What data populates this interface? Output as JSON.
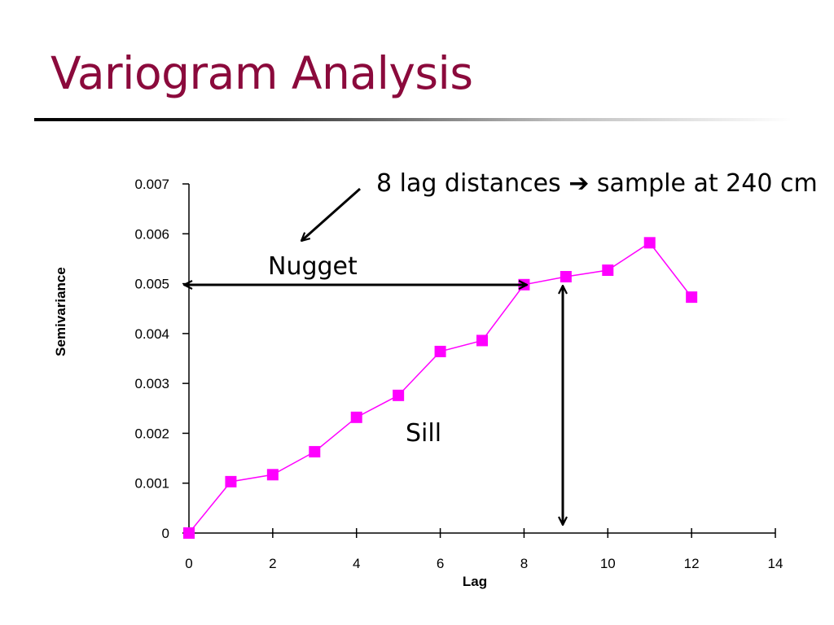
{
  "slide": {
    "title": "Variogram Analysis"
  },
  "chart_data": {
    "type": "line",
    "xlabel": "Lag",
    "ylabel": "Semivariance",
    "xlim": [
      0,
      14
    ],
    "ylim": [
      0,
      0.007
    ],
    "x_ticks": [
      "0",
      "2",
      "4",
      "6",
      "8",
      "10",
      "12",
      "14"
    ],
    "y_ticks": [
      "0",
      "0.001",
      "0.002",
      "0.003",
      "0.004",
      "0.005",
      "0.006",
      "0.007"
    ],
    "grid": false,
    "legend": "none",
    "series": [
      {
        "color": "#ff00ff",
        "marker": "square",
        "x": [
          0,
          1,
          2,
          3,
          4,
          5,
          6,
          7,
          8,
          9,
          10,
          11,
          12
        ],
        "y": [
          0,
          0.00103,
          0.00117,
          0.00163,
          0.00232,
          0.00276,
          0.00364,
          0.00386,
          0.00498,
          0.00514,
          0.00527,
          0.00582,
          0.00473
        ]
      }
    ],
    "annotations": {
      "lag_note": "8 lag distances ➔ sample at 240 cm",
      "nugget": "Nugget",
      "sill": "Sill"
    }
  }
}
